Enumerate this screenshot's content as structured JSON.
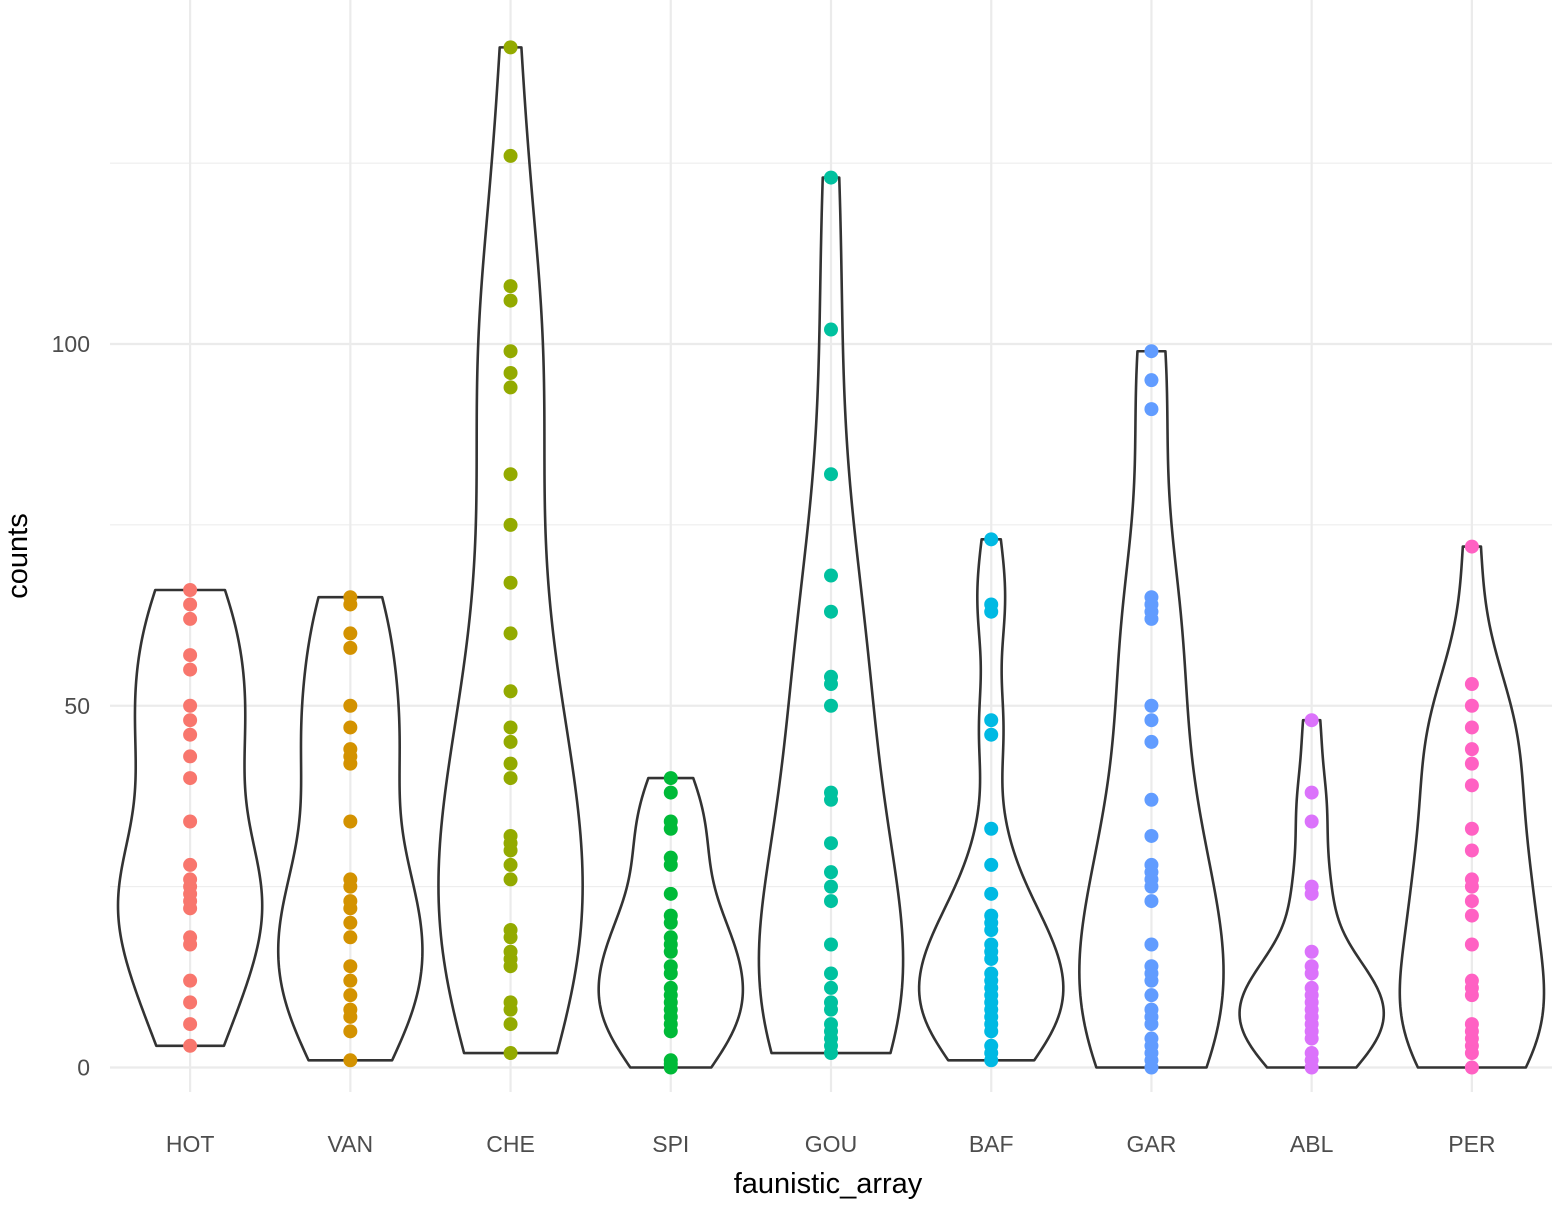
{
  "chart_data": {
    "type": "violin",
    "title": "",
    "xlabel": "faunistic_array",
    "ylabel": "counts",
    "ylim": [
      -4,
      145
    ],
    "y_ticks": [
      0,
      50,
      100
    ],
    "legend": "none",
    "grid": true,
    "categories": [
      "HOT",
      "VAN",
      "CHE",
      "SPI",
      "GOU",
      "BAF",
      "GAR",
      "ABL",
      "PER"
    ],
    "colors": [
      "#F8766D",
      "#D39200",
      "#93AA00",
      "#00BA38",
      "#00C19F",
      "#00B9E3",
      "#619CFF",
      "#DB72FB",
      "#FF61C3"
    ],
    "series": [
      {
        "category": "HOT",
        "values": [
          3,
          6,
          9,
          12,
          17,
          18,
          22,
          23,
          24,
          25,
          26,
          28,
          34,
          40,
          43,
          46,
          48,
          50,
          55,
          57,
          62,
          64,
          66
        ]
      },
      {
        "category": "VAN",
        "values": [
          1,
          5,
          7,
          8,
          10,
          12,
          14,
          18,
          20,
          22,
          23,
          25,
          26,
          34,
          42,
          43,
          44,
          47,
          50,
          58,
          60,
          64,
          65
        ]
      },
      {
        "category": "CHE",
        "values": [
          2,
          6,
          8,
          9,
          14,
          15,
          16,
          18,
          19,
          26,
          28,
          30,
          31,
          32,
          40,
          42,
          45,
          47,
          52,
          60,
          67,
          75,
          82,
          94,
          96,
          99,
          106,
          108,
          126,
          141
        ]
      },
      {
        "category": "SPI",
        "values": [
          0,
          0.5,
          1,
          5,
          6,
          7,
          8,
          9,
          10,
          11,
          13,
          14,
          16,
          17,
          18,
          20,
          21,
          24,
          28,
          29,
          33,
          34,
          38,
          40
        ]
      },
      {
        "category": "GOU",
        "values": [
          2,
          3,
          4,
          5,
          6,
          8,
          9,
          11,
          13,
          17,
          23,
          25,
          27,
          31,
          37,
          38,
          50,
          53,
          54,
          63,
          68,
          82,
          102,
          123
        ]
      },
      {
        "category": "BAF",
        "values": [
          1,
          2,
          3,
          5,
          6,
          7,
          8,
          9,
          10,
          11,
          12,
          13,
          15,
          16,
          17,
          19,
          20,
          21,
          24,
          28,
          33,
          46,
          48,
          63,
          64,
          73
        ]
      },
      {
        "category": "GAR",
        "values": [
          0,
          1,
          2,
          3,
          4,
          6,
          7,
          8,
          10,
          12,
          13,
          14,
          17,
          23,
          25,
          26,
          27,
          28,
          32,
          37,
          45,
          48,
          50,
          62,
          63,
          64,
          65,
          91,
          95,
          99
        ]
      },
      {
        "category": "ABL",
        "values": [
          0,
          1,
          2,
          4,
          5,
          6,
          7,
          8,
          9,
          10,
          11,
          13,
          14,
          16,
          24,
          25,
          34,
          38,
          48
        ]
      },
      {
        "category": "PER",
        "values": [
          0,
          2,
          3,
          4,
          5,
          6,
          10,
          11,
          12,
          17,
          21,
          23,
          25,
          26,
          30,
          33,
          39,
          42,
          44,
          47,
          50,
          53,
          72
        ]
      }
    ]
  }
}
